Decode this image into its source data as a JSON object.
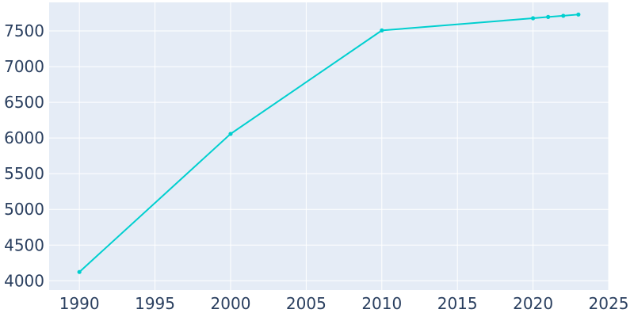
{
  "chart_data": {
    "type": "line",
    "title": "",
    "xlabel": "",
    "ylabel": "",
    "xlim": [
      1988,
      2025
    ],
    "ylim": [
      3870,
      7900
    ],
    "x_ticks": [
      1990,
      1995,
      2000,
      2005,
      2010,
      2015,
      2020,
      2025
    ],
    "y_ticks": [
      4000,
      4500,
      5000,
      5500,
      6000,
      6500,
      7000,
      7500
    ],
    "grid": true,
    "legend": "none",
    "colors": {
      "line": "#00cfcf",
      "background": "#e5ecf6",
      "grid": "#ffffff",
      "tick_text": "#2a3f5f"
    },
    "series": [
      {
        "x": [
          1990,
          2000,
          2010,
          2020,
          2021,
          2022,
          2023
        ],
        "values": [
          4123,
          6058,
          7507,
          7678,
          7696,
          7712,
          7730
        ]
      }
    ]
  }
}
